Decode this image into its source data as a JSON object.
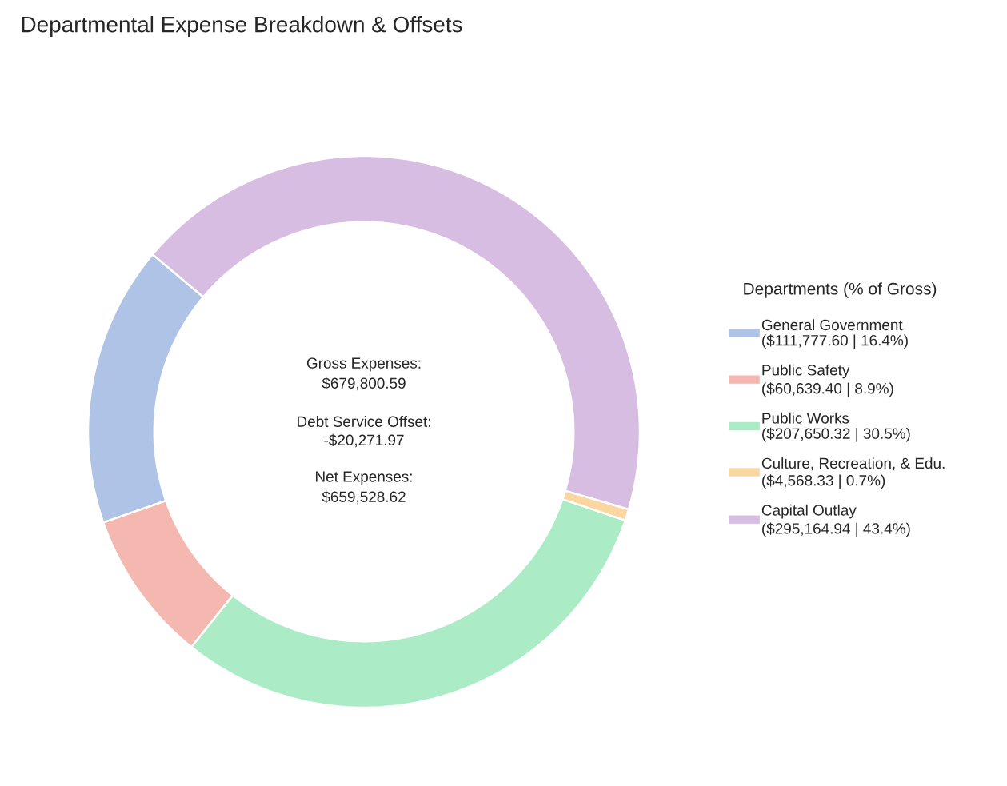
{
  "chart_data": {
    "type": "donut",
    "title": "Departmental Expense Breakdown & Offsets",
    "categories": [
      "General Government",
      "Public Safety",
      "Public Works",
      "Culture, Recreation, & Edu.",
      "Capital Outlay"
    ],
    "values": [
      111777.6,
      60639.4,
      207650.32,
      4568.33,
      295164.94
    ],
    "value_labels": [
      "($111,777.60 | 16.4%)",
      "($60,639.40 | 8.9%)",
      "($207,650.32 | 30.5%)",
      "($4,568.33 | 0.7%)",
      "($295,164.94 | 43.4%)"
    ],
    "colors": [
      "#aec3e6",
      "#f4b8b0",
      "#abebc6",
      "#fad7a0",
      "#d7bde2"
    ],
    "legend": "right",
    "legend_title": "Departments (% of Gross)",
    "annotations": [
      "Gross Expenses:",
      "$679,800.59",
      "Debt Service Offset:",
      "-$20,271.97",
      "Net Expenses:",
      "$659,528.62"
    ]
  }
}
